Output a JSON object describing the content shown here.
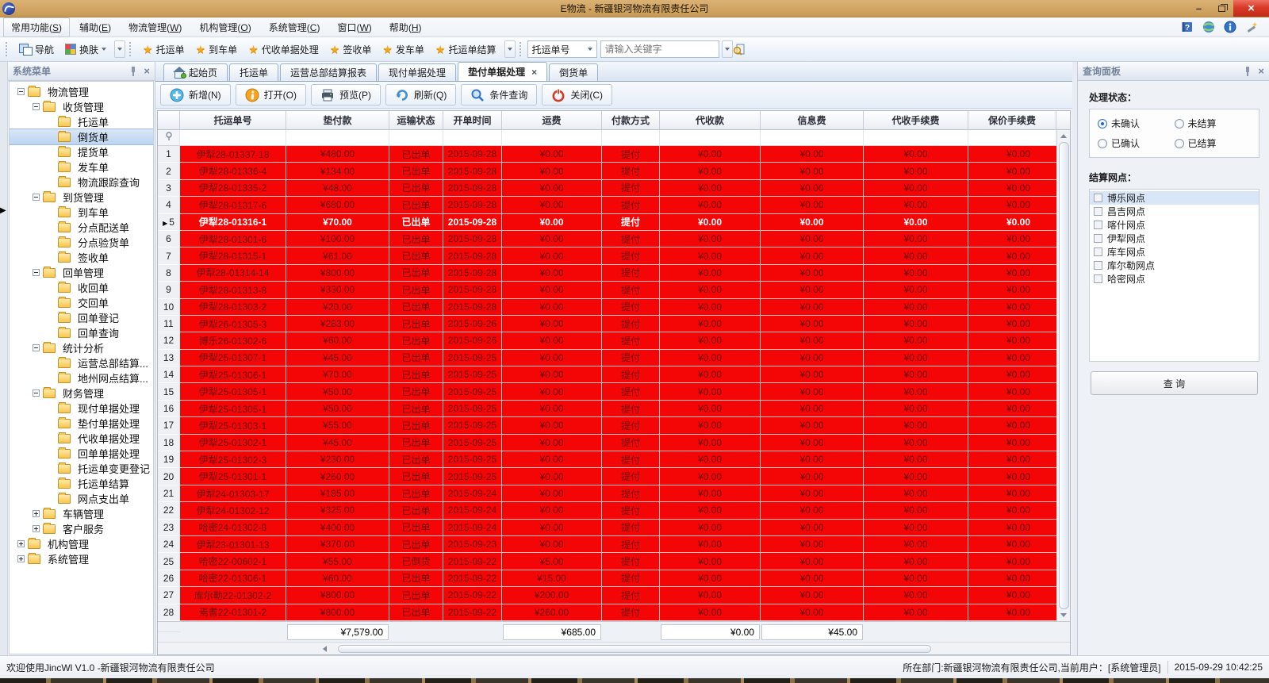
{
  "window": {
    "title": "E物流 - 新疆银河物流有限责任公司"
  },
  "colors": {
    "row_red": "#f40606",
    "row_text": "#6d0d0d",
    "selected_row_text": "#ffffff",
    "titlebar_gold": "#c79a55",
    "close_button_red": "#d93a28",
    "star_gold": "#f7a71b",
    "tree_selection": "#bcd4f0"
  },
  "menu_bar": {
    "items": [
      {
        "text": "常用功能",
        "key": "S"
      },
      {
        "text": "辅助",
        "key": "E"
      },
      {
        "text": "物流管理",
        "key": "W"
      },
      {
        "text": "机构管理",
        "key": "O"
      },
      {
        "text": "系统管理",
        "key": "C"
      },
      {
        "text": "窗口",
        "key": "W"
      },
      {
        "text": "帮助",
        "key": "H"
      }
    ],
    "right_icons": [
      "help-book-icon",
      "globe-icon",
      "info-icon",
      "wizard-icon"
    ]
  },
  "toolbar": {
    "nav_label": "导航",
    "skin_label": "换肤",
    "favorites": [
      "托运单",
      "到车单",
      "代收单据处理",
      "签收单",
      "发车单",
      "托运单结算"
    ],
    "search_field_selector": "托运单号",
    "search_placeholder": "请输入关键字",
    "search_icon": "magnifier-page-icon"
  },
  "tabs": [
    {
      "label": "起始页",
      "icon": "home-icon"
    },
    {
      "label": "托运单"
    },
    {
      "label": "运营总部结算报表"
    },
    {
      "label": "现付单据处理"
    },
    {
      "label": "垫付单据处理",
      "active": true,
      "closable": true
    },
    {
      "label": "倒货单"
    }
  ],
  "actions": [
    {
      "label": "新增(N)",
      "icon": "add"
    },
    {
      "label": "打开(O)",
      "icon": "open"
    },
    {
      "label": "预览(P)",
      "icon": "preview"
    },
    {
      "label": "刷新(Q)",
      "icon": "refresh"
    },
    {
      "label": "条件查询",
      "icon": "search"
    },
    {
      "label": "关闭(C)",
      "icon": "power"
    }
  ],
  "sidebar": {
    "title": "系统菜单",
    "tree": [
      {
        "label": "物流管理",
        "level": 0,
        "expander": "minus"
      },
      {
        "label": "收货管理",
        "level": 1,
        "expander": "minus"
      },
      {
        "label": "托运单",
        "level": 2,
        "expander": "none"
      },
      {
        "label": "倒货单",
        "level": 2,
        "expander": "none",
        "selected": true
      },
      {
        "label": "提货单",
        "level": 2,
        "expander": "none"
      },
      {
        "label": "发车单",
        "level": 2,
        "expander": "none"
      },
      {
        "label": "物流跟踪查询",
        "level": 2,
        "expander": "none"
      },
      {
        "label": "到货管理",
        "level": 1,
        "expander": "minus"
      },
      {
        "label": "到车单",
        "level": 2,
        "expander": "none"
      },
      {
        "label": "分点配送单",
        "level": 2,
        "expander": "none"
      },
      {
        "label": "分点验货单",
        "level": 2,
        "expander": "none"
      },
      {
        "label": "签收单",
        "level": 2,
        "expander": "none"
      },
      {
        "label": "回单管理",
        "level": 1,
        "expander": "minus"
      },
      {
        "label": "收回单",
        "level": 2,
        "expander": "none"
      },
      {
        "label": "交回单",
        "level": 2,
        "expander": "none"
      },
      {
        "label": "回单登记",
        "level": 2,
        "expander": "none"
      },
      {
        "label": "回单查询",
        "level": 2,
        "expander": "none"
      },
      {
        "label": "统计分析",
        "level": 1,
        "expander": "minus"
      },
      {
        "label": "运营总部结算...",
        "level": 2,
        "expander": "none"
      },
      {
        "label": "地州网点结算...",
        "level": 2,
        "expander": "none"
      },
      {
        "label": "财务管理",
        "level": 1,
        "expander": "minus"
      },
      {
        "label": "现付单据处理",
        "level": 2,
        "expander": "none"
      },
      {
        "label": "垫付单据处理",
        "level": 2,
        "expander": "none"
      },
      {
        "label": "代收单据处理",
        "level": 2,
        "expander": "none"
      },
      {
        "label": "回单单据处理",
        "level": 2,
        "expander": "none"
      },
      {
        "label": "托运单变更登记",
        "level": 2,
        "expander": "none"
      },
      {
        "label": "托运单结算",
        "level": 2,
        "expander": "none"
      },
      {
        "label": "网点支出单",
        "level": 2,
        "expander": "none"
      },
      {
        "label": "车辆管理",
        "level": 1,
        "expander": "plus"
      },
      {
        "label": "客户服务",
        "level": 1,
        "expander": "plus"
      },
      {
        "label": "机构管理",
        "level": 0,
        "expander": "plus"
      },
      {
        "label": "系统管理",
        "level": 0,
        "expander": "plus"
      }
    ]
  },
  "grid": {
    "columns": [
      "托运单号",
      "垫付款",
      "运输状态",
      "开单时间",
      "运费",
      "付款方式",
      "代收款",
      "信息费",
      "代收手续费",
      "保价手续费"
    ],
    "rows": [
      {
        "no": "1",
        "cells": [
          "伊犁28-01337-18",
          "¥480.00",
          "已出单",
          "2015-09-28",
          "¥0.00",
          "提付",
          "¥0.00",
          "¥0.00",
          "¥0.00",
          "¥0.00"
        ]
      },
      {
        "no": "2",
        "cells": [
          "伊犁28-01336-4",
          "¥134.00",
          "已出单",
          "2015-09-28",
          "¥0.00",
          "提付",
          "¥0.00",
          "¥0.00",
          "¥0.00",
          "¥0.00"
        ]
      },
      {
        "no": "3",
        "cells": [
          "伊犁28-01335-2",
          "¥48.00",
          "已出单",
          "2015-09-28",
          "¥0.00",
          "提付",
          "¥0.00",
          "¥0.00",
          "¥0.00",
          "¥0.00"
        ]
      },
      {
        "no": "4",
        "cells": [
          "伊犁28-01317-6",
          "¥680.00",
          "已出单",
          "2015-09-28",
          "¥0.00",
          "提付",
          "¥0.00",
          "¥0.00",
          "¥0.00",
          "¥0.00"
        ]
      },
      {
        "no": "5",
        "selected": true,
        "cells": [
          "伊犁28-01316-1",
          "¥70.00",
          "已出单",
          "2015-09-28",
          "¥0.00",
          "提付",
          "¥0.00",
          "¥0.00",
          "¥0.00",
          "¥0.00"
        ]
      },
      {
        "no": "6",
        "cells": [
          "伊犁28-01301-6",
          "¥100.00",
          "已出单",
          "2015-09-28",
          "¥0.00",
          "提付",
          "¥0.00",
          "¥0.00",
          "¥0.00",
          "¥0.00"
        ]
      },
      {
        "no": "7",
        "cells": [
          "伊犁28-01315-1",
          "¥61.00",
          "已出单",
          "2015-09-28",
          "¥0.00",
          "提付",
          "¥0.00",
          "¥0.00",
          "¥0.00",
          "¥0.00"
        ]
      },
      {
        "no": "8",
        "cells": [
          "伊犁28-01314-14",
          "¥800.00",
          "已出单",
          "2015-09-28",
          "¥0.00",
          "提付",
          "¥0.00",
          "¥0.00",
          "¥0.00",
          "¥0.00"
        ]
      },
      {
        "no": "9",
        "cells": [
          "伊犁28-01313-8",
          "¥330.00",
          "已出单",
          "2015-09-28",
          "¥0.00",
          "提付",
          "¥0.00",
          "¥0.00",
          "¥0.00",
          "¥0.00"
        ]
      },
      {
        "no": "10",
        "cells": [
          "伊犁28-01303-2",
          "¥20.00",
          "已出单",
          "2015-09-28",
          "¥0.00",
          "提付",
          "¥0.00",
          "¥0.00",
          "¥0.00",
          "¥0.00"
        ]
      },
      {
        "no": "11",
        "cells": [
          "伊犁26-01305-3",
          "¥283.00",
          "已出单",
          "2015-09-26",
          "¥0.00",
          "提付",
          "¥0.00",
          "¥0.00",
          "¥0.00",
          "¥0.00"
        ]
      },
      {
        "no": "12",
        "cells": [
          "博乐26-01302-6",
          "¥60.00",
          "已出单",
          "2015-09-26",
          "¥0.00",
          "提付",
          "¥0.00",
          "¥0.00",
          "¥0.00",
          "¥0.00"
        ]
      },
      {
        "no": "13",
        "cells": [
          "伊犁25-01307-1",
          "¥45.00",
          "已出单",
          "2015-09-25",
          "¥0.00",
          "提付",
          "¥0.00",
          "¥0.00",
          "¥0.00",
          "¥0.00"
        ]
      },
      {
        "no": "14",
        "cells": [
          "伊犁25-01306-1",
          "¥70.00",
          "已出单",
          "2015-09-25",
          "¥0.00",
          "提付",
          "¥0.00",
          "¥0.00",
          "¥0.00",
          "¥0.00"
        ]
      },
      {
        "no": "15",
        "cells": [
          "伊犁25-01305-1",
          "¥50.00",
          "已出单",
          "2015-09-25",
          "¥0.00",
          "提付",
          "¥0.00",
          "¥0.00",
          "¥0.00",
          "¥0.00"
        ]
      },
      {
        "no": "16",
        "cells": [
          "伊犁25-01305-1",
          "¥50.00",
          "已出单",
          "2015-09-25",
          "¥0.00",
          "提付",
          "¥0.00",
          "¥0.00",
          "¥0.00",
          "¥0.00"
        ]
      },
      {
        "no": "17",
        "cells": [
          "伊犁25-01303-1",
          "¥55.00",
          "已出单",
          "2015-09-25",
          "¥0.00",
          "提付",
          "¥0.00",
          "¥0.00",
          "¥0.00",
          "¥0.00"
        ]
      },
      {
        "no": "18",
        "cells": [
          "伊犁25-01302-1",
          "¥45.00",
          "已出单",
          "2015-09-25",
          "¥0.00",
          "提付",
          "¥0.00",
          "¥0.00",
          "¥0.00",
          "¥0.00"
        ]
      },
      {
        "no": "19",
        "cells": [
          "伊犁25-01302-3",
          "¥230.00",
          "已出单",
          "2015-09-25",
          "¥0.00",
          "提付",
          "¥0.00",
          "¥0.00",
          "¥0.00",
          "¥0.00"
        ]
      },
      {
        "no": "20",
        "cells": [
          "伊犁25-01301-1",
          "¥260.00",
          "已出单",
          "2015-09-25",
          "¥0.00",
          "提付",
          "¥0.00",
          "¥0.00",
          "¥0.00",
          "¥0.00"
        ]
      },
      {
        "no": "21",
        "cells": [
          "伊犁24-01303-17",
          "¥185.00",
          "已出单",
          "2015-09-24",
          "¥0.00",
          "提付",
          "¥0.00",
          "¥0.00",
          "¥0.00",
          "¥0.00"
        ]
      },
      {
        "no": "22",
        "cells": [
          "伊犁24-01302-12",
          "¥325.00",
          "已出单",
          "2015-09-24",
          "¥0.00",
          "提付",
          "¥0.00",
          "¥0.00",
          "¥0.00",
          "¥0.00"
        ]
      },
      {
        "no": "23",
        "cells": [
          "哈密24-01302-8",
          "¥400.00",
          "已出单",
          "2015-09-24",
          "¥0.00",
          "提付",
          "¥0.00",
          "¥0.00",
          "¥0.00",
          "¥0.00"
        ]
      },
      {
        "no": "24",
        "cells": [
          "伊犁23-01301-13",
          "¥370.00",
          "已出单",
          "2015-09-23",
          "¥0.00",
          "提付",
          "¥0.00",
          "¥0.00",
          "¥0.00",
          "¥0.00"
        ]
      },
      {
        "no": "25",
        "cells": [
          "哈密22-00602-1",
          "¥55.00",
          "已倒货",
          "2015-09-22",
          "¥5.00",
          "提付",
          "¥0.00",
          "¥0.00",
          "¥0.00",
          "¥0.00"
        ]
      },
      {
        "no": "26",
        "cells": [
          "哈密22-01306-1",
          "¥60.00",
          "已出单",
          "2015-09-22",
          "¥15.00",
          "提付",
          "¥0.00",
          "¥0.00",
          "¥0.00",
          "¥0.00"
        ]
      },
      {
        "no": "27",
        "cells": [
          "库尔勒22-01302-2",
          "¥800.00",
          "已出单",
          "2015-09-22",
          "¥200.00",
          "提付",
          "¥0.00",
          "¥0.00",
          "¥0.00",
          "¥0.00"
        ]
      },
      {
        "no": "28",
        "cells": [
          "焉耆22-01301-2",
          "¥800.00",
          "已出单",
          "2015-09-22",
          "¥260.00",
          "提付",
          "¥0.00",
          "¥0.00",
          "¥0.00",
          "¥0.00"
        ]
      }
    ],
    "totals": [
      "",
      "",
      "¥7,579.00",
      "",
      "",
      "¥685.00",
      "",
      "¥0.00",
      "¥45.00",
      "",
      ""
    ]
  },
  "query_panel": {
    "title": "查询面板",
    "status_label": "处理状态：",
    "radios": [
      {
        "label": "未确认",
        "checked": true
      },
      {
        "label": "未结算",
        "checked": false
      },
      {
        "label": "已确认",
        "checked": false
      },
      {
        "label": "已结算",
        "checked": false
      }
    ],
    "network_label": "结算网点：",
    "networks": [
      {
        "label": "博乐网点",
        "highlight": true
      },
      {
        "label": "昌吉网点"
      },
      {
        "label": "喀什网点"
      },
      {
        "label": "伊犁网点"
      },
      {
        "label": "库车网点"
      },
      {
        "label": "库尔勒网点"
      },
      {
        "label": "哈密网点"
      }
    ],
    "query_button": "查 询"
  },
  "status_bar": {
    "left": "欢迎使用JincWl V1.0 -新疆银河物流有限责任公司",
    "right": "所在部门:新疆银河物流有限责任公司,当前用户：[系统管理员]",
    "time": "2015-09-29 10:42:25"
  }
}
